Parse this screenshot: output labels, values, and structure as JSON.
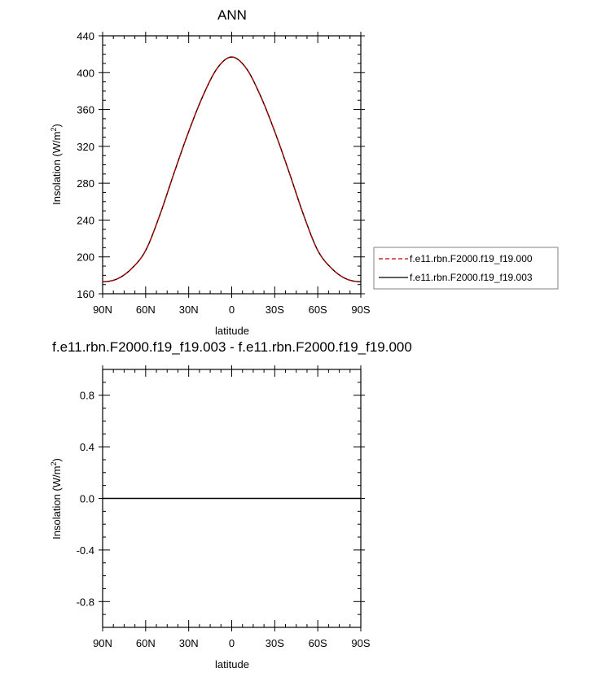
{
  "chart_data": [
    {
      "type": "line",
      "title": "ANN",
      "xlabel": "latitude",
      "ylabel": "Insolation (W/m",
      "ylabel_sup": "2",
      "ylabel_close": ")",
      "xlim": [
        -90,
        90
      ],
      "ylim": [
        160,
        440
      ],
      "xticks": [
        -90,
        -60,
        -30,
        0,
        30,
        60,
        90
      ],
      "xtick_labels": [
        "90N",
        "60N",
        "30N",
        "0",
        "30S",
        "60S",
        "90S"
      ],
      "yticks": [
        160,
        200,
        240,
        280,
        320,
        360,
        400,
        440
      ],
      "ytick_labels": [
        "160",
        "200",
        "240",
        "280",
        "320",
        "360",
        "400",
        "440"
      ],
      "legend_placement": "right",
      "x": [
        -90,
        -80,
        -70,
        -60,
        -50,
        -40,
        -30,
        -20,
        -10,
        0,
        10,
        20,
        30,
        40,
        50,
        60,
        70,
        80,
        90
      ],
      "series": [
        {
          "name": "f.e11.rbn.F2000.f19_f19.000",
          "color": "#c00000",
          "style": "dashed",
          "values": [
            173,
            176,
            187,
            207,
            246,
            292,
            336,
            375,
            405,
            417,
            405,
            375,
            336,
            292,
            246,
            207,
            187,
            176,
            173
          ]
        },
        {
          "name": "f.e11.rbn.F2000.f19_f19.003",
          "color": "#000000",
          "style": "solid",
          "values": [
            173,
            176,
            187,
            207,
            246,
            292,
            336,
            375,
            405,
            417,
            405,
            375,
            336,
            292,
            246,
            207,
            187,
            176,
            173
          ]
        }
      ]
    },
    {
      "type": "line",
      "title": "f.e11.rbn.F2000.f19_f19.003 - f.e11.rbn.F2000.f19_f19.000",
      "xlabel": "latitude",
      "ylabel": "Insolation (W/m",
      "ylabel_sup": "2",
      "ylabel_close": ")",
      "xlim": [
        -90,
        90
      ],
      "ylim": [
        -1,
        1
      ],
      "xticks": [
        -90,
        -60,
        -30,
        0,
        30,
        60,
        90
      ],
      "xtick_labels": [
        "90N",
        "60N",
        "30N",
        "0",
        "30S",
        "60S",
        "90S"
      ],
      "yticks": [
        -0.8,
        -0.4,
        0.0,
        0.4,
        0.8
      ],
      "ytick_labels": [
        "-0.8",
        "-0.4",
        "0.0",
        "0.4",
        "0.8"
      ],
      "x": [
        -90,
        90
      ],
      "series": [
        {
          "color": "#000000",
          "style": "solid",
          "values": [
            0,
            0
          ]
        }
      ]
    }
  ]
}
